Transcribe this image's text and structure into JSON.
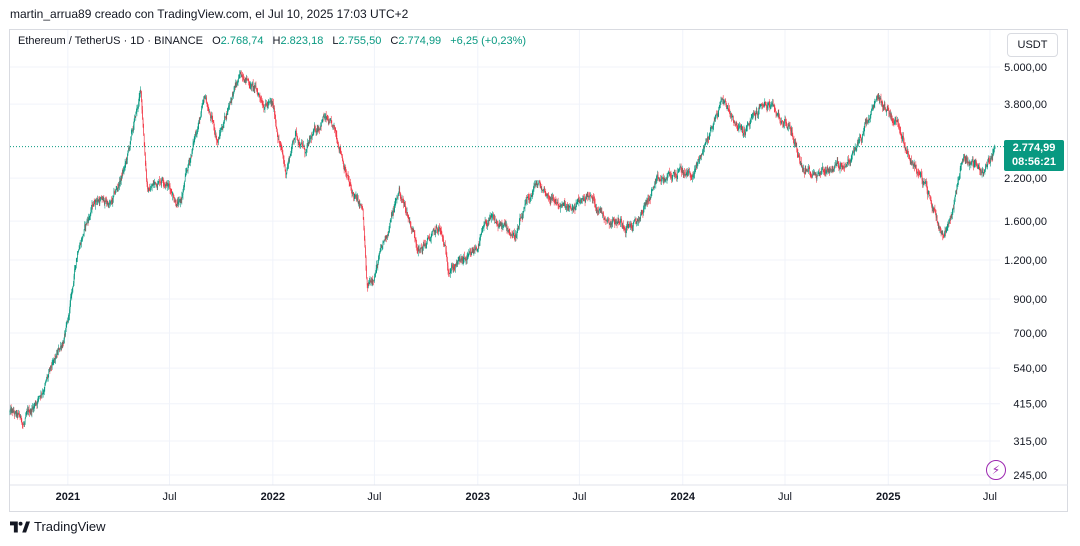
{
  "header": {
    "text": "martin_arrua89 creado con TradingView.com, el Jul 10, 2025 17:03 UTC+2"
  },
  "legend": {
    "symbol": "Ethereum / TetherUS · 1D · BINANCE",
    "o_label": "O",
    "o_value": "2.768,74",
    "h_label": "H",
    "h_value": "2.823,18",
    "l_label": "L",
    "l_value": "2.755,50",
    "c_label": "C",
    "c_value": "2.774,99",
    "change": "+6,25 (+0,23%)"
  },
  "currency": "USDT",
  "price_tag": {
    "price": "2.774,99",
    "countdown": "08:56:21"
  },
  "footer": {
    "brand": "TradingView"
  },
  "colors": {
    "up": "#089981",
    "down": "#f23645",
    "grid": "#f0f3fa",
    "last_price_line": "#089981"
  },
  "chart_data": {
    "type": "candlestick",
    "y_scale": "log",
    "ylim": [
      230,
      5600
    ],
    "y_ticks": [
      {
        "value": 5000,
        "label": "5.000,00"
      },
      {
        "value": 3800,
        "label": "3.800,00"
      },
      {
        "value": 2200,
        "label": "2.200,00"
      },
      {
        "value": 1600,
        "label": "1.600,00"
      },
      {
        "value": 1200,
        "label": "1.200,00"
      },
      {
        "value": 900,
        "label": "900,00"
      },
      {
        "value": 700,
        "label": "700,00"
      },
      {
        "value": 540,
        "label": "540,00"
      },
      {
        "value": 415,
        "label": "415,00"
      },
      {
        "value": 315,
        "label": "315,00"
      },
      {
        "value": 245,
        "label": "245,00"
      }
    ],
    "x_ticks": [
      {
        "date": "2021-01-01",
        "label": "2021",
        "bold": true
      },
      {
        "date": "2021-07-01",
        "label": "Jul",
        "bold": false
      },
      {
        "date": "2022-01-01",
        "label": "2022",
        "bold": true
      },
      {
        "date": "2022-07-01",
        "label": "Jul",
        "bold": false
      },
      {
        "date": "2023-01-01",
        "label": "2023",
        "bold": true
      },
      {
        "date": "2023-07-01",
        "label": "Jul",
        "bold": false
      },
      {
        "date": "2024-01-01",
        "label": "2024",
        "bold": true
      },
      {
        "date": "2024-07-01",
        "label": "Jul",
        "bold": false
      },
      {
        "date": "2025-01-01",
        "label": "2025",
        "bold": true
      },
      {
        "date": "2025-07-01",
        "label": "Jul",
        "bold": false
      }
    ],
    "last_price": 2774.99,
    "x_range": [
      "2020-09-20",
      "2025-07-10"
    ],
    "path": [
      {
        "date": "2020-09-20",
        "price": 390
      },
      {
        "date": "2020-10-15",
        "price": 355
      },
      {
        "date": "2020-11-10",
        "price": 440
      },
      {
        "date": "2020-12-10",
        "price": 560
      },
      {
        "date": "2021-01-01",
        "price": 740
      },
      {
        "date": "2021-01-20",
        "price": 1350
      },
      {
        "date": "2021-02-20",
        "price": 1900
      },
      {
        "date": "2021-03-20",
        "price": 1800
      },
      {
        "date": "2021-04-15",
        "price": 2450
      },
      {
        "date": "2021-05-11",
        "price": 4150
      },
      {
        "date": "2021-05-23",
        "price": 2000
      },
      {
        "date": "2021-06-20",
        "price": 2250
      },
      {
        "date": "2021-07-20",
        "price": 1800
      },
      {
        "date": "2021-08-20",
        "price": 3250
      },
      {
        "date": "2021-09-03",
        "price": 3900
      },
      {
        "date": "2021-09-25",
        "price": 2900
      },
      {
        "date": "2021-10-20",
        "price": 4100
      },
      {
        "date": "2021-11-10",
        "price": 4800
      },
      {
        "date": "2021-12-05",
        "price": 4100
      },
      {
        "date": "2022-01-01",
        "price": 3700
      },
      {
        "date": "2022-01-24",
        "price": 2300
      },
      {
        "date": "2022-02-10",
        "price": 3100
      },
      {
        "date": "2022-03-01",
        "price": 2650
      },
      {
        "date": "2022-04-01",
        "price": 3500
      },
      {
        "date": "2022-05-01",
        "price": 2800
      },
      {
        "date": "2022-05-20",
        "price": 2000
      },
      {
        "date": "2022-06-10",
        "price": 1700
      },
      {
        "date": "2022-06-18",
        "price": 950
      },
      {
        "date": "2022-07-15",
        "price": 1300
      },
      {
        "date": "2022-08-14",
        "price": 2000
      },
      {
        "date": "2022-09-20",
        "price": 1300
      },
      {
        "date": "2022-10-25",
        "price": 1500
      },
      {
        "date": "2022-11-10",
        "price": 1150
      },
      {
        "date": "2022-12-20",
        "price": 1200
      },
      {
        "date": "2023-01-20",
        "price": 1600
      },
      {
        "date": "2023-03-10",
        "price": 1450
      },
      {
        "date": "2023-04-15",
        "price": 2100
      },
      {
        "date": "2023-06-15",
        "price": 1700
      },
      {
        "date": "2023-07-15",
        "price": 1950
      },
      {
        "date": "2023-08-20",
        "price": 1650
      },
      {
        "date": "2023-10-10",
        "price": 1550
      },
      {
        "date": "2023-11-10",
        "price": 2050
      },
      {
        "date": "2023-12-25",
        "price": 2300
      },
      {
        "date": "2024-01-20",
        "price": 2250
      },
      {
        "date": "2024-03-12",
        "price": 3950
      },
      {
        "date": "2024-04-18",
        "price": 3050
      },
      {
        "date": "2024-05-25",
        "price": 3850
      },
      {
        "date": "2024-07-10",
        "price": 3200
      },
      {
        "date": "2024-08-05",
        "price": 2300
      },
      {
        "date": "2024-09-10",
        "price": 2350
      },
      {
        "date": "2024-10-25",
        "price": 2500
      },
      {
        "date": "2024-12-15",
        "price": 3900
      },
      {
        "date": "2025-01-20",
        "price": 3300
      },
      {
        "date": "2025-02-05",
        "price": 2700
      },
      {
        "date": "2025-03-01",
        "price": 2200
      },
      {
        "date": "2025-04-09",
        "price": 1450
      },
      {
        "date": "2025-04-28",
        "price": 1800
      },
      {
        "date": "2025-05-13",
        "price": 2600
      },
      {
        "date": "2025-06-22",
        "price": 2300
      },
      {
        "date": "2025-07-10",
        "price": 2775
      }
    ]
  }
}
